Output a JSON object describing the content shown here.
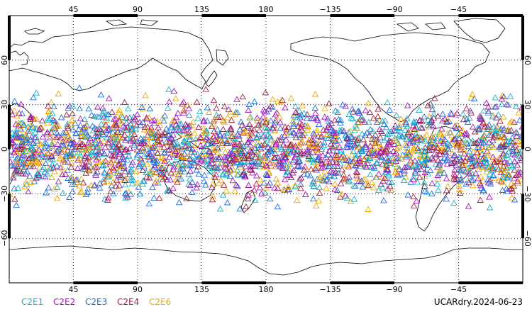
{
  "map": {
    "projection": "cylindrical equidistant",
    "central_longitude": 180,
    "lon_range": [
      0,
      360
    ],
    "lat_range": [
      -90,
      90
    ],
    "grid": "dotted",
    "lon_grid_step": 45,
    "lat_grid_step": 30,
    "lat_extent_of_obs": [
      -45,
      45
    ]
  },
  "axes": {
    "lon_ticks": [
      "45",
      "90",
      "135",
      "180",
      "−135",
      "−90",
      "−45"
    ],
    "lat_ticks": [
      "60",
      "30",
      "0",
      "−30",
      "−60"
    ]
  },
  "legend": {
    "items": [
      {
        "label": "C2E1",
        "color": "#13b3c9"
      },
      {
        "label": "C2E2",
        "color": "#a414b8"
      },
      {
        "label": "C2E3",
        "color": "#1b6fe0"
      },
      {
        "label": "C2E4",
        "color": "#a01f3c"
      },
      {
        "label": "C2E6",
        "color": "#f0a800"
      }
    ]
  },
  "footer": {
    "label": "UCARdry.2024-06-23"
  },
  "colors": {
    "coastline": "#000000",
    "grid": "#000000",
    "background": "#ffffff"
  },
  "marker": {
    "shape": "open-triangle"
  }
}
